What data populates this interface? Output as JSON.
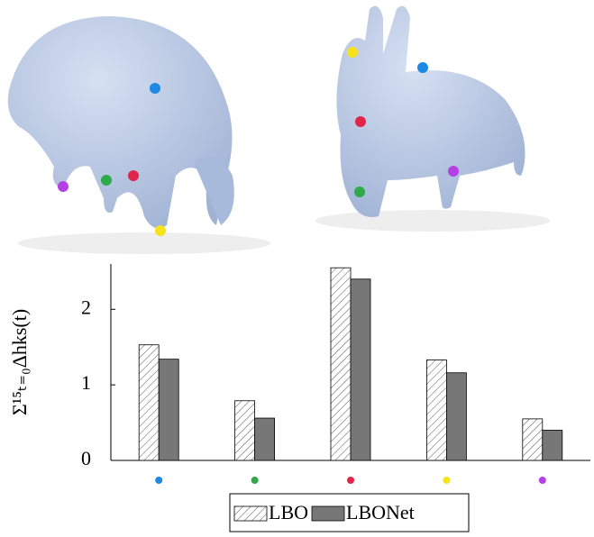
{
  "chart_data": {
    "type": "bar",
    "y_label": "Σ¹⁵ₜ₌₀Δhks(t)",
    "categories": [
      null,
      null,
      null,
      null,
      null
    ],
    "category_colors": [
      "#1e88e5",
      "#2eaa4a",
      "#e0244a",
      "#f5e219",
      "#b540e6"
    ],
    "series": [
      {
        "name": "LBO",
        "color": "#ffffff",
        "pattern": "hatch",
        "values": [
          1.53,
          0.79,
          2.55,
          1.33,
          0.55
        ]
      },
      {
        "name": "LBONet",
        "color": "#777777",
        "values": [
          1.34,
          0.56,
          2.4,
          1.16,
          0.4
        ]
      }
    ],
    "ylim": [
      0,
      2.6
    ],
    "yticks": [
      0,
      1,
      2
    ],
    "legend": "bottom"
  }
}
